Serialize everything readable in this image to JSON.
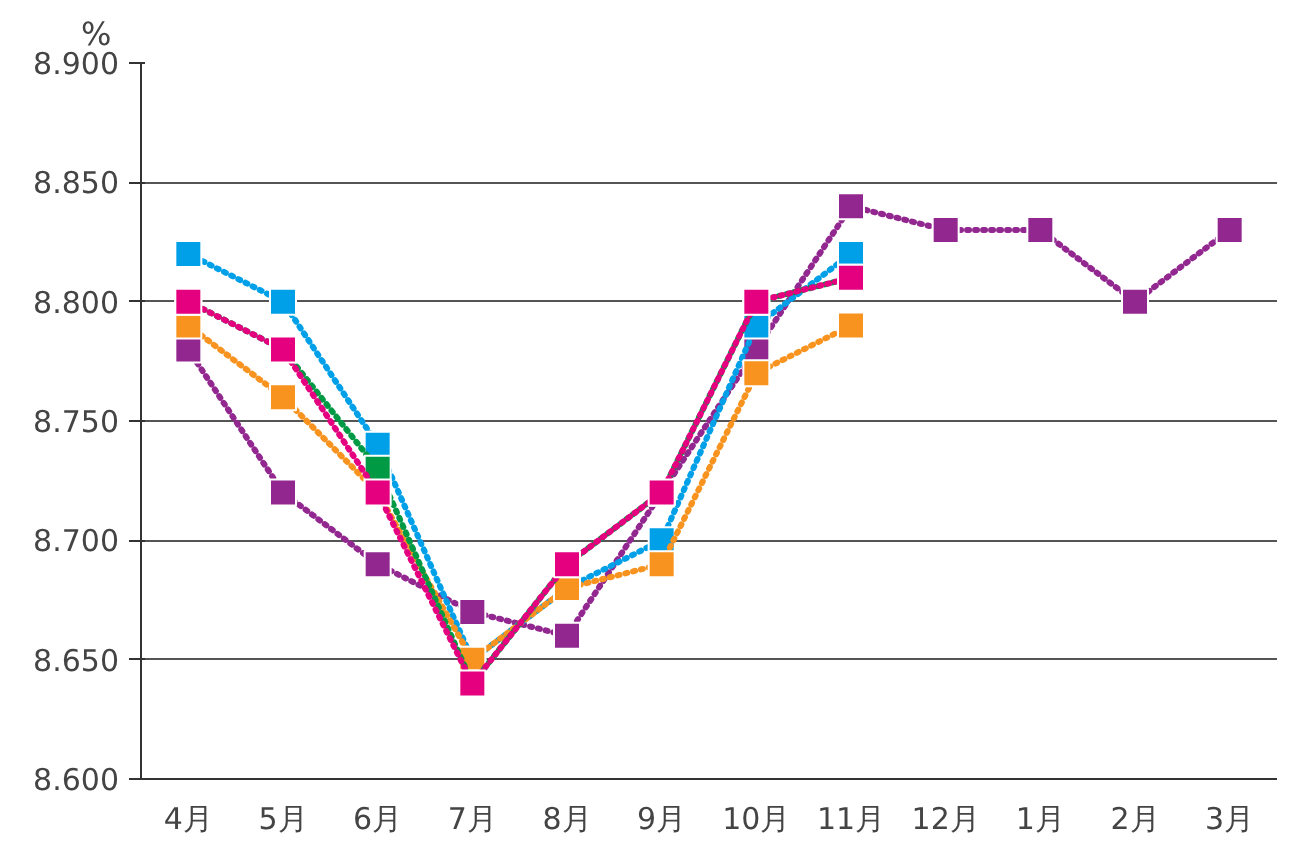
{
  "chart_data": {
    "type": "line",
    "ylabel": "%",
    "categories": [
      "4月",
      "5月",
      "6月",
      "7月",
      "8月",
      "9月",
      "10月",
      "11月",
      "12月",
      "1月",
      "2月",
      "3月"
    ],
    "ylim": [
      8.6,
      8.9
    ],
    "yticks": [
      {
        "value": 8.6,
        "label": "8.600"
      },
      {
        "value": 8.65,
        "label": "8.650"
      },
      {
        "value": 8.7,
        "label": "8.700"
      },
      {
        "value": 8.75,
        "label": "8.750"
      },
      {
        "value": 8.8,
        "label": "8.800"
      },
      {
        "value": 8.85,
        "label": "8.850"
      },
      {
        "value": 8.9,
        "label": "8.900"
      }
    ],
    "grid": "y",
    "marker": "square",
    "line_style": "dotted",
    "series": [
      {
        "color": "#92278f",
        "values": [
          8.78,
          8.72,
          8.69,
          8.67,
          8.66,
          8.72,
          8.78,
          8.84,
          8.83,
          8.83,
          8.8,
          8.83
        ]
      },
      {
        "color": "#00a0e9",
        "values": [
          8.82,
          8.8,
          8.74,
          8.65,
          8.68,
          8.7,
          8.79,
          8.82,
          null,
          null,
          null,
          null
        ]
      },
      {
        "color": "#f7931e",
        "values": [
          8.79,
          8.76,
          8.72,
          8.65,
          8.68,
          8.69,
          8.77,
          8.79,
          null,
          null,
          null,
          null
        ]
      },
      {
        "color": "#009944",
        "values": [
          8.8,
          8.78,
          8.73,
          8.64,
          8.69,
          8.72,
          8.8,
          8.81,
          null,
          null,
          null,
          null
        ]
      },
      {
        "color": "#e4007f",
        "values": [
          8.8,
          8.78,
          8.72,
          8.64,
          8.69,
          8.72,
          8.8,
          8.81,
          null,
          null,
          null,
          null
        ]
      }
    ]
  }
}
